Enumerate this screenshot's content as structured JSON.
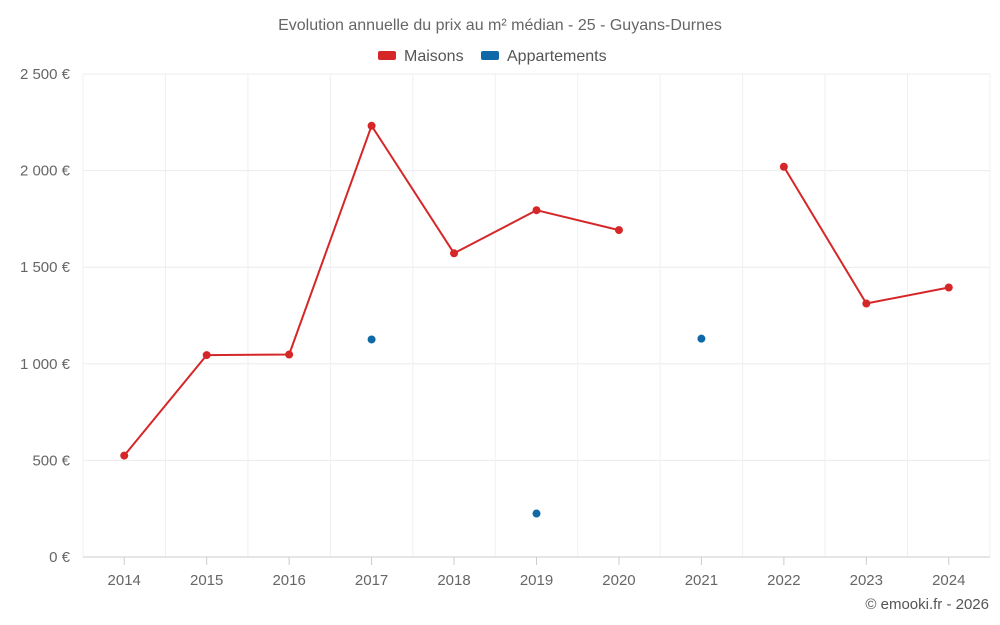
{
  "chart_data": {
    "type": "line",
    "title": "Evolution annuelle du prix au m² médian - 25 - Guyans-Durnes",
    "categories": [
      "2014",
      "2015",
      "2016",
      "2017",
      "2018",
      "2019",
      "2020",
      "2021",
      "2022",
      "2023",
      "2024"
    ],
    "series": [
      {
        "name": "Maisons",
        "color": "#d62728",
        "values": [
          525,
          1045,
          1048,
          2232,
          1572,
          1795,
          1692,
          null,
          2020,
          1312,
          1395
        ]
      },
      {
        "name": "Appartements",
        "color": "#0f69a6",
        "values": [
          null,
          null,
          null,
          1126,
          null,
          225,
          null,
          1130,
          null,
          null,
          null
        ]
      }
    ],
    "ylim": [
      0,
      2500
    ],
    "yticks": [
      0,
      500,
      1000,
      1500,
      2000,
      2500
    ],
    "ytick_labels": [
      "0 €",
      "500 €",
      "1 000 €",
      "1 500 €",
      "2 000 €",
      "2 500 €"
    ],
    "xlabel": "",
    "ylabel": "",
    "grid": true,
    "legend_position": "top-center"
  },
  "credit": "© emooki.fr - 2026"
}
